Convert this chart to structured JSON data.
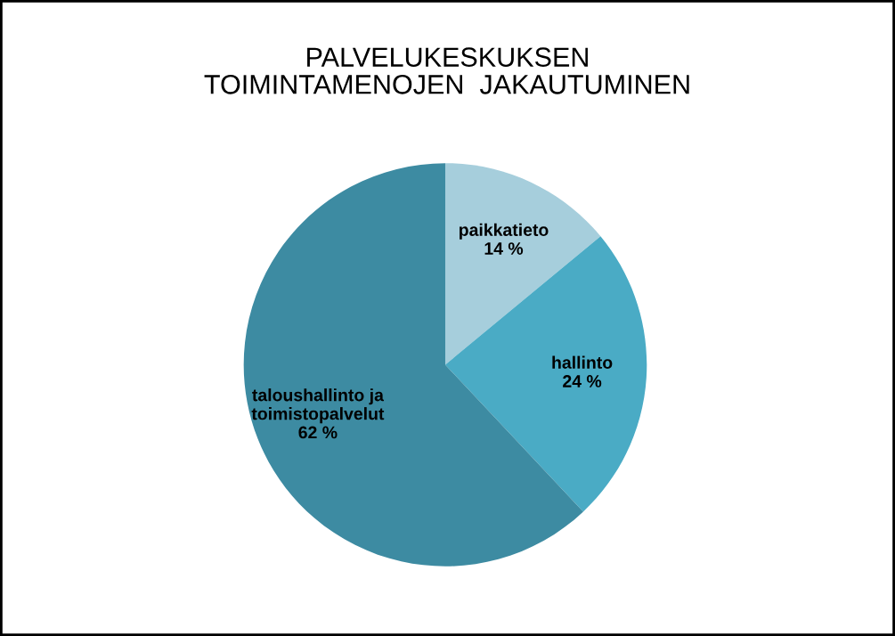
{
  "chart_data": {
    "type": "pie",
    "title": "PALVELUKESKUKSEN\nTOIMINTAMENOJEN  JAKAUTUMINEN",
    "categories": [
      "paikkatieto",
      "hallinto",
      "taloushallinto ja\ntoimistopalvelut"
    ],
    "values": [
      14,
      24,
      62
    ],
    "value_labels": [
      "14 %",
      "24 %",
      "62 %"
    ],
    "colors": [
      "#a6cedc",
      "#4aabc5",
      "#3d8ba2"
    ],
    "legend": false
  }
}
